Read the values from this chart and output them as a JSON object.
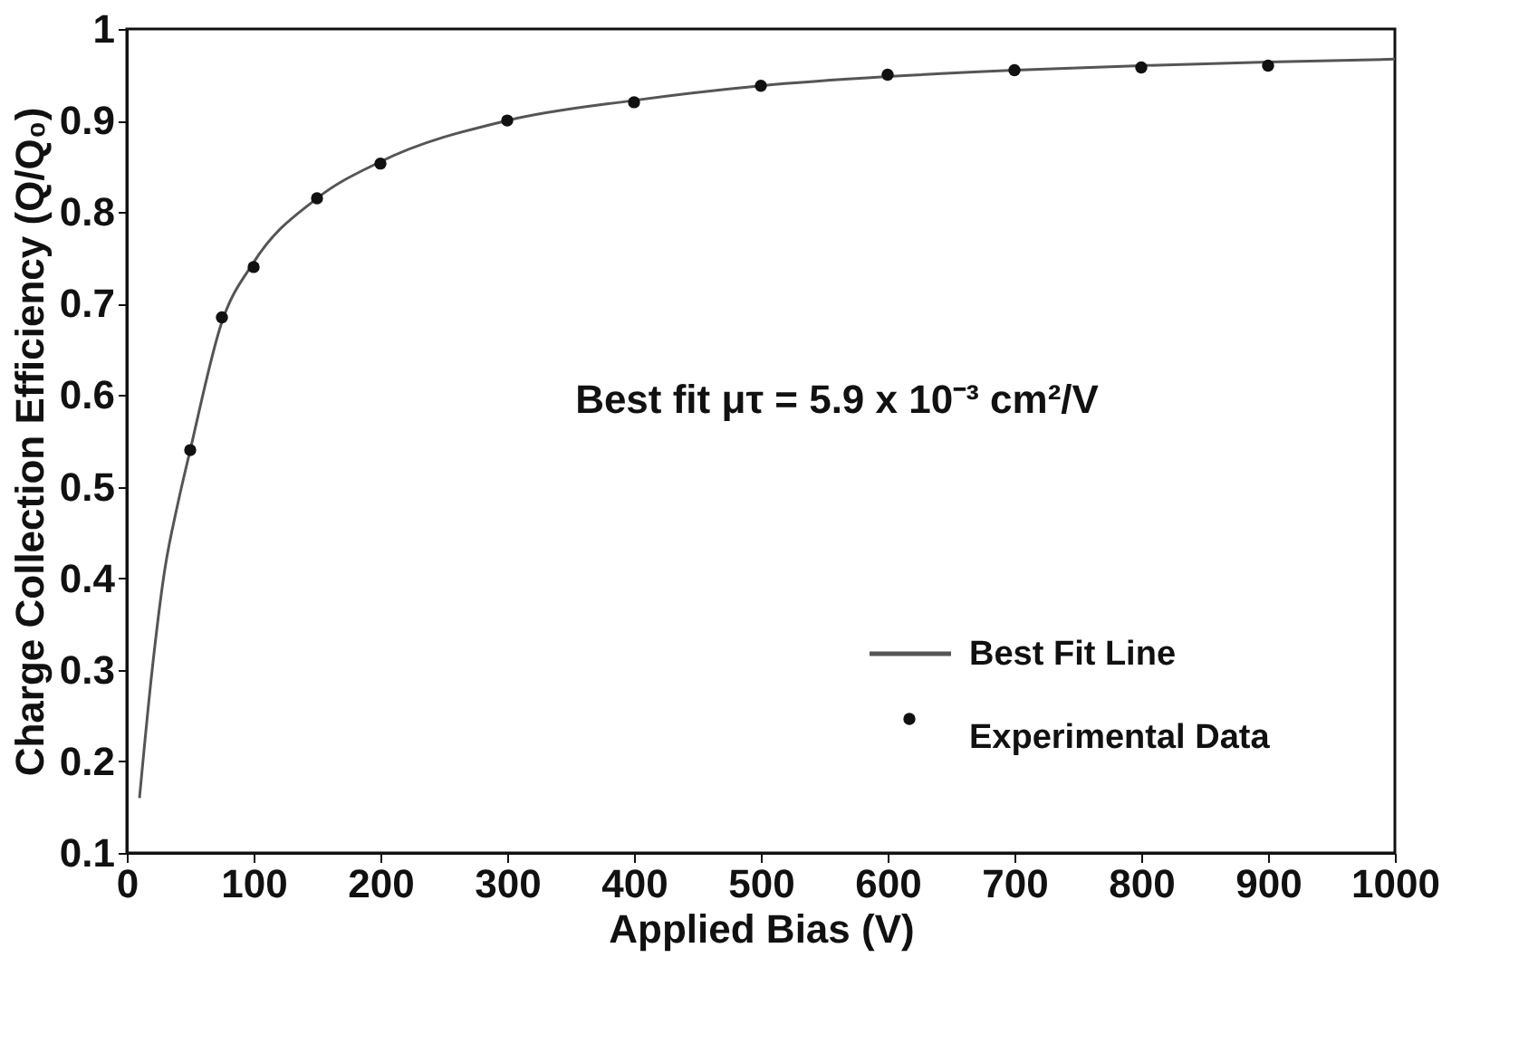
{
  "chart_data": {
    "type": "line",
    "xlabel": "Applied Bias (V)",
    "ylabel": "Charge Collection Efficiency (Q/Q₀)",
    "xlim": [
      0,
      1000
    ],
    "xticks": [
      0,
      100,
      200,
      300,
      400,
      500,
      600,
      700,
      800,
      900,
      1000
    ],
    "ylim": [
      0.1,
      1
    ],
    "yticks": [
      0.1,
      0.2,
      0.3,
      0.4,
      0.5,
      0.6,
      0.7,
      0.8,
      0.9,
      1
    ],
    "grid": false,
    "legend": "bottom right",
    "annotations": [
      "Best fit μτ = 5.9 x 10⁻³ cm²/V"
    ],
    "series": [
      {
        "name": "Best Fit Line",
        "color": "#555555",
        "marker": "none",
        "line_style": "solid",
        "x": [
          10,
          20,
          30,
          40,
          50,
          75,
          100,
          150,
          200,
          300,
          400,
          500,
          600,
          700,
          800,
          900,
          1000
        ],
        "values": [
          0.16,
          0.3,
          0.41,
          0.48,
          0.54,
          0.68,
          0.745,
          0.815,
          0.855,
          0.9,
          0.922,
          0.938,
          0.948,
          0.955,
          0.96,
          0.964,
          0.967
        ]
      },
      {
        "name": "Experimental Data",
        "type": "scatter",
        "color": "#111111",
        "marker": "circle",
        "x": [
          50,
          75,
          100,
          150,
          200,
          300,
          400,
          500,
          600,
          700,
          800,
          900
        ],
        "values": [
          0.54,
          0.685,
          0.74,
          0.815,
          0.853,
          0.9,
          0.92,
          0.938,
          0.95,
          0.955,
          0.958,
          0.96
        ]
      }
    ]
  }
}
